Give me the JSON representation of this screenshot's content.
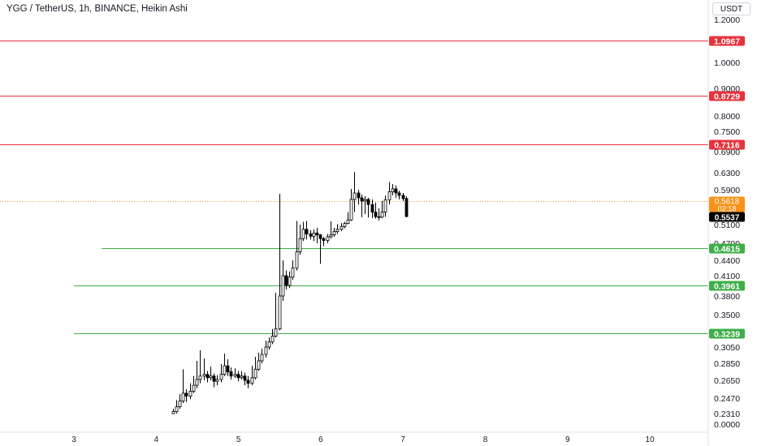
{
  "header": {
    "title": "YGG / TetherUS, 1h, BINANCE, Heikin Ashi",
    "currency": "USDT"
  },
  "colors": {
    "resistance": "#e8323c",
    "support": "#3fae49",
    "last_price": "#f7931a",
    "current_price": "#000000",
    "candle_up": "#ffffff",
    "candle_down": "#000000"
  },
  "chart_data": {
    "type": "candlestick",
    "price_axis": {
      "ticks": [
        "1.2000",
        "1.0000",
        "0.9000",
        "0.8000",
        "0.7500",
        "0.6900",
        "0.6300",
        "0.5900",
        "0.5100",
        "0.4700",
        "0.4400",
        "0.4100",
        "0.3800",
        "0.3500",
        "0.3050",
        "0.2850",
        "0.2650",
        "0.2470",
        "0.2310",
        "0.0000"
      ]
    },
    "time_axis": {
      "ticks": [
        "3",
        "4",
        "5",
        "6",
        "7",
        "8",
        "9",
        "10"
      ]
    },
    "resistance_levels": [
      "1.0967",
      "0.8729",
      "0.7116"
    ],
    "support_levels": [
      "0.4615",
      "0.3961",
      "0.3239"
    ],
    "last_price": {
      "label": "0.5618",
      "timer": "02:18"
    },
    "current_price": {
      "label": "0.5537"
    },
    "candles_t0": 4.2,
    "candles_dt": 0.0417,
    "candles": [
      [
        0.228,
        0.233,
        0.226,
        0.236
      ],
      [
        0.233,
        0.238,
        0.231,
        0.245
      ],
      [
        0.238,
        0.244,
        0.236,
        0.251
      ],
      [
        0.244,
        0.252,
        0.242,
        0.278
      ],
      [
        0.252,
        0.249,
        0.243,
        0.256
      ],
      [
        0.249,
        0.254,
        0.246,
        0.262
      ],
      [
        0.254,
        0.26,
        0.252,
        0.27
      ],
      [
        0.26,
        0.266,
        0.257,
        0.288
      ],
      [
        0.266,
        0.27,
        0.262,
        0.301
      ],
      [
        0.27,
        0.272,
        0.265,
        0.291
      ],
      [
        0.272,
        0.268,
        0.263,
        0.276
      ],
      [
        0.268,
        0.27,
        0.265,
        0.281
      ],
      [
        0.27,
        0.264,
        0.258,
        0.273
      ],
      [
        0.264,
        0.266,
        0.26,
        0.271
      ],
      [
        0.266,
        0.272,
        0.263,
        0.284
      ],
      [
        0.272,
        0.282,
        0.27,
        0.297
      ],
      [
        0.282,
        0.275,
        0.27,
        0.29
      ],
      [
        0.275,
        0.27,
        0.266,
        0.28
      ],
      [
        0.27,
        0.272,
        0.268,
        0.279
      ],
      [
        0.272,
        0.268,
        0.264,
        0.276
      ],
      [
        0.268,
        0.27,
        0.266,
        0.276
      ],
      [
        0.27,
        0.265,
        0.26,
        0.274
      ],
      [
        0.265,
        0.262,
        0.257,
        0.27
      ],
      [
        0.262,
        0.268,
        0.26,
        0.282
      ],
      [
        0.268,
        0.278,
        0.266,
        0.293
      ],
      [
        0.278,
        0.288,
        0.276,
        0.298
      ],
      [
        0.288,
        0.296,
        0.285,
        0.303
      ],
      [
        0.296,
        0.305,
        0.292,
        0.314
      ],
      [
        0.305,
        0.312,
        0.302,
        0.318
      ],
      [
        0.312,
        0.32,
        0.309,
        0.33
      ],
      [
        0.32,
        0.33,
        0.318,
        0.385
      ],
      [
        0.33,
        0.38,
        0.328,
        0.58
      ],
      [
        0.38,
        0.41,
        0.372,
        0.44
      ],
      [
        0.41,
        0.396,
        0.39,
        0.42
      ],
      [
        0.396,
        0.408,
        0.392,
        0.418
      ],
      [
        0.408,
        0.425,
        0.404,
        0.44
      ],
      [
        0.425,
        0.455,
        0.42,
        0.53
      ],
      [
        0.455,
        0.48,
        0.45,
        0.51
      ],
      [
        0.48,
        0.5,
        0.475,
        0.525
      ],
      [
        0.5,
        0.49,
        0.478,
        0.53
      ],
      [
        0.49,
        0.485,
        0.478,
        0.498
      ],
      [
        0.485,
        0.492,
        0.475,
        0.5
      ],
      [
        0.492,
        0.488,
        0.47,
        0.503
      ],
      [
        0.488,
        0.48,
        0.433,
        0.49
      ],
      [
        0.48,
        0.476,
        0.465,
        0.484
      ],
      [
        0.476,
        0.484,
        0.47,
        0.49
      ],
      [
        0.484,
        0.488,
        0.48,
        0.528
      ],
      [
        0.488,
        0.495,
        0.484,
        0.503
      ],
      [
        0.495,
        0.5,
        0.49,
        0.512
      ],
      [
        0.5,
        0.506,
        0.496,
        0.518
      ],
      [
        0.506,
        0.516,
        0.502,
        0.525
      ],
      [
        0.516,
        0.535,
        0.512,
        0.556
      ],
      [
        0.535,
        0.566,
        0.53,
        0.592
      ],
      [
        0.566,
        0.582,
        0.556,
        0.632
      ],
      [
        0.582,
        0.57,
        0.56,
        0.59
      ],
      [
        0.57,
        0.562,
        0.55,
        0.578
      ],
      [
        0.562,
        0.566,
        0.555,
        0.574
      ],
      [
        0.566,
        0.56,
        0.548,
        0.57
      ],
      [
        0.56,
        0.556,
        0.545,
        0.566
      ],
      [
        0.556,
        0.553,
        0.542,
        0.561
      ],
      [
        0.553,
        0.55,
        0.533,
        0.558
      ],
      [
        0.55,
        0.556,
        0.545,
        0.562
      ],
      [
        0.556,
        0.565,
        0.552,
        0.576
      ],
      [
        0.565,
        0.585,
        0.56,
        0.608
      ],
      [
        0.585,
        0.592,
        0.576,
        0.603
      ],
      [
        0.592,
        0.582,
        0.57,
        0.6
      ],
      [
        0.582,
        0.576,
        0.566,
        0.588
      ],
      [
        0.576,
        0.568,
        0.562,
        0.582
      ],
      [
        0.568,
        0.5537,
        0.55,
        0.574
      ]
    ]
  }
}
